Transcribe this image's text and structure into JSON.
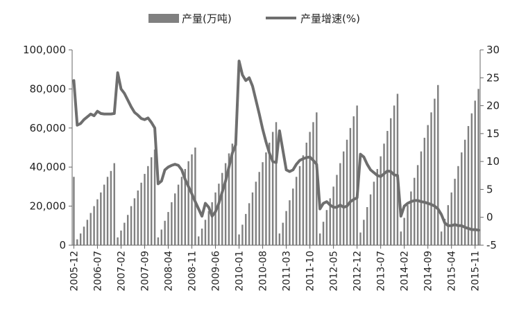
{
  "chart_data": {
    "type": "bar",
    "legend": {
      "bar_label": "产量(万吨)",
      "line_label": "产量增速(%)",
      "placement": "top"
    },
    "colors": {
      "bar": "#808080",
      "line": "#6e6e6e",
      "axis": "#666666"
    },
    "y_left": {
      "ylim": [
        0,
        100000
      ],
      "ticks": [
        "0",
        "20,000",
        "40,000",
        "60,000",
        "80,000",
        "100,000"
      ],
      "tick_values": [
        0,
        20000,
        40000,
        60000,
        80000,
        100000
      ]
    },
    "y_right": {
      "ylim": [
        -5,
        30
      ],
      "ticks": [
        "-5",
        "0",
        "5",
        "10",
        "15",
        "20",
        "25",
        "30"
      ],
      "tick_values": [
        -5,
        0,
        5,
        10,
        15,
        20,
        25,
        30
      ]
    },
    "x_tick_labels": [
      "2005-12",
      "2006-07",
      "2007-02",
      "2007-09",
      "2008-04",
      "2008-11",
      "2009-06",
      "2010-01",
      "2010-08",
      "2011-03",
      "2011-10",
      "2012-05",
      "2012-12",
      "2013-07",
      "2014-02",
      "2014-09",
      "2015-04",
      "2015-11"
    ],
    "x_tick_indices": [
      0,
      7,
      14,
      21,
      28,
      35,
      42,
      49,
      56,
      63,
      70,
      77,
      84,
      91,
      98,
      105,
      112,
      119
    ],
    "grid": false,
    "series": [
      {
        "name": "产量(万吨)",
        "kind": "bar",
        "values": [
          35000,
          3000,
          6000,
          9500,
          13000,
          16500,
          20000,
          23500,
          27000,
          31000,
          35000,
          38000,
          42000,
          4000,
          7500,
          11500,
          15500,
          20000,
          24000,
          28000,
          32000,
          36500,
          40500,
          45000,
          49000,
          4000,
          8000,
          12500,
          17000,
          22000,
          26500,
          31000,
          35000,
          39000,
          43000,
          46500,
          50000,
          4500,
          8500,
          13000,
          17500,
          22000,
          27000,
          31500,
          37000,
          42000,
          47000,
          52000,
          57000,
          5500,
          10500,
          16000,
          21500,
          27000,
          32500,
          37500,
          42500,
          47500,
          52500,
          58000,
          63000,
          6000,
          11500,
          17500,
          23000,
          29000,
          35000,
          40500,
          46000,
          52500,
          58000,
          63000,
          68000,
          6000,
          12000,
          18000,
          24000,
          30000,
          36000,
          42000,
          48000,
          54000,
          60000,
          66000,
          71500,
          6500,
          13000,
          19500,
          26000,
          32500,
          39000,
          45500,
          52000,
          58500,
          65000,
          71500,
          77500,
          7000,
          14000,
          20500,
          27500,
          34500,
          41000,
          48000,
          55000,
          61500,
          68000,
          75000,
          82000,
          7000,
          13500,
          20500,
          27000,
          34000,
          40500,
          47500,
          54000,
          61000,
          67500,
          74000,
          80000
        ]
      },
      {
        "name": "产量增速(%)",
        "kind": "line",
        "axis": "right",
        "values": [
          24.5,
          16.5,
          16.8,
          17.5,
          18.0,
          18.5,
          18.2,
          19.0,
          18.6,
          18.5,
          18.5,
          18.5,
          18.6,
          25.9,
          23.0,
          22.2,
          21.0,
          19.8,
          18.8,
          18.3,
          17.7,
          17.5,
          17.8,
          17.0,
          16.0,
          6.0,
          6.5,
          8.5,
          9.0,
          9.3,
          9.5,
          9.3,
          8.5,
          6.8,
          5.5,
          4.2,
          2.8,
          1.5,
          0.2,
          2.5,
          1.8,
          0.2,
          1.0,
          2.5,
          4.5,
          6.5,
          9.0,
          11.5,
          13.0,
          28.0,
          25.5,
          24.5,
          25.0,
          23.5,
          21.0,
          18.5,
          15.8,
          13.5,
          11.5,
          10.0,
          9.8,
          15.5,
          12.0,
          8.5,
          8.2,
          8.5,
          9.5,
          10.2,
          10.5,
          10.7,
          10.8,
          10.2,
          9.5,
          1.5,
          2.5,
          2.8,
          2.2,
          1.8,
          1.8,
          2.2,
          1.8,
          2.0,
          2.8,
          3.2,
          3.5,
          11.3,
          10.8,
          9.5,
          8.5,
          8.0,
          7.5,
          7.3,
          7.8,
          8.3,
          8.2,
          7.6,
          7.5,
          0.2,
          2.0,
          2.5,
          2.8,
          3.0,
          3.0,
          2.8,
          2.7,
          2.5,
          2.3,
          2.0,
          1.5,
          0.5,
          -1.0,
          -1.5,
          -1.5,
          -1.3,
          -1.5,
          -1.5,
          -1.8,
          -2.0,
          -2.2,
          -2.2,
          -2.3
        ]
      }
    ]
  }
}
